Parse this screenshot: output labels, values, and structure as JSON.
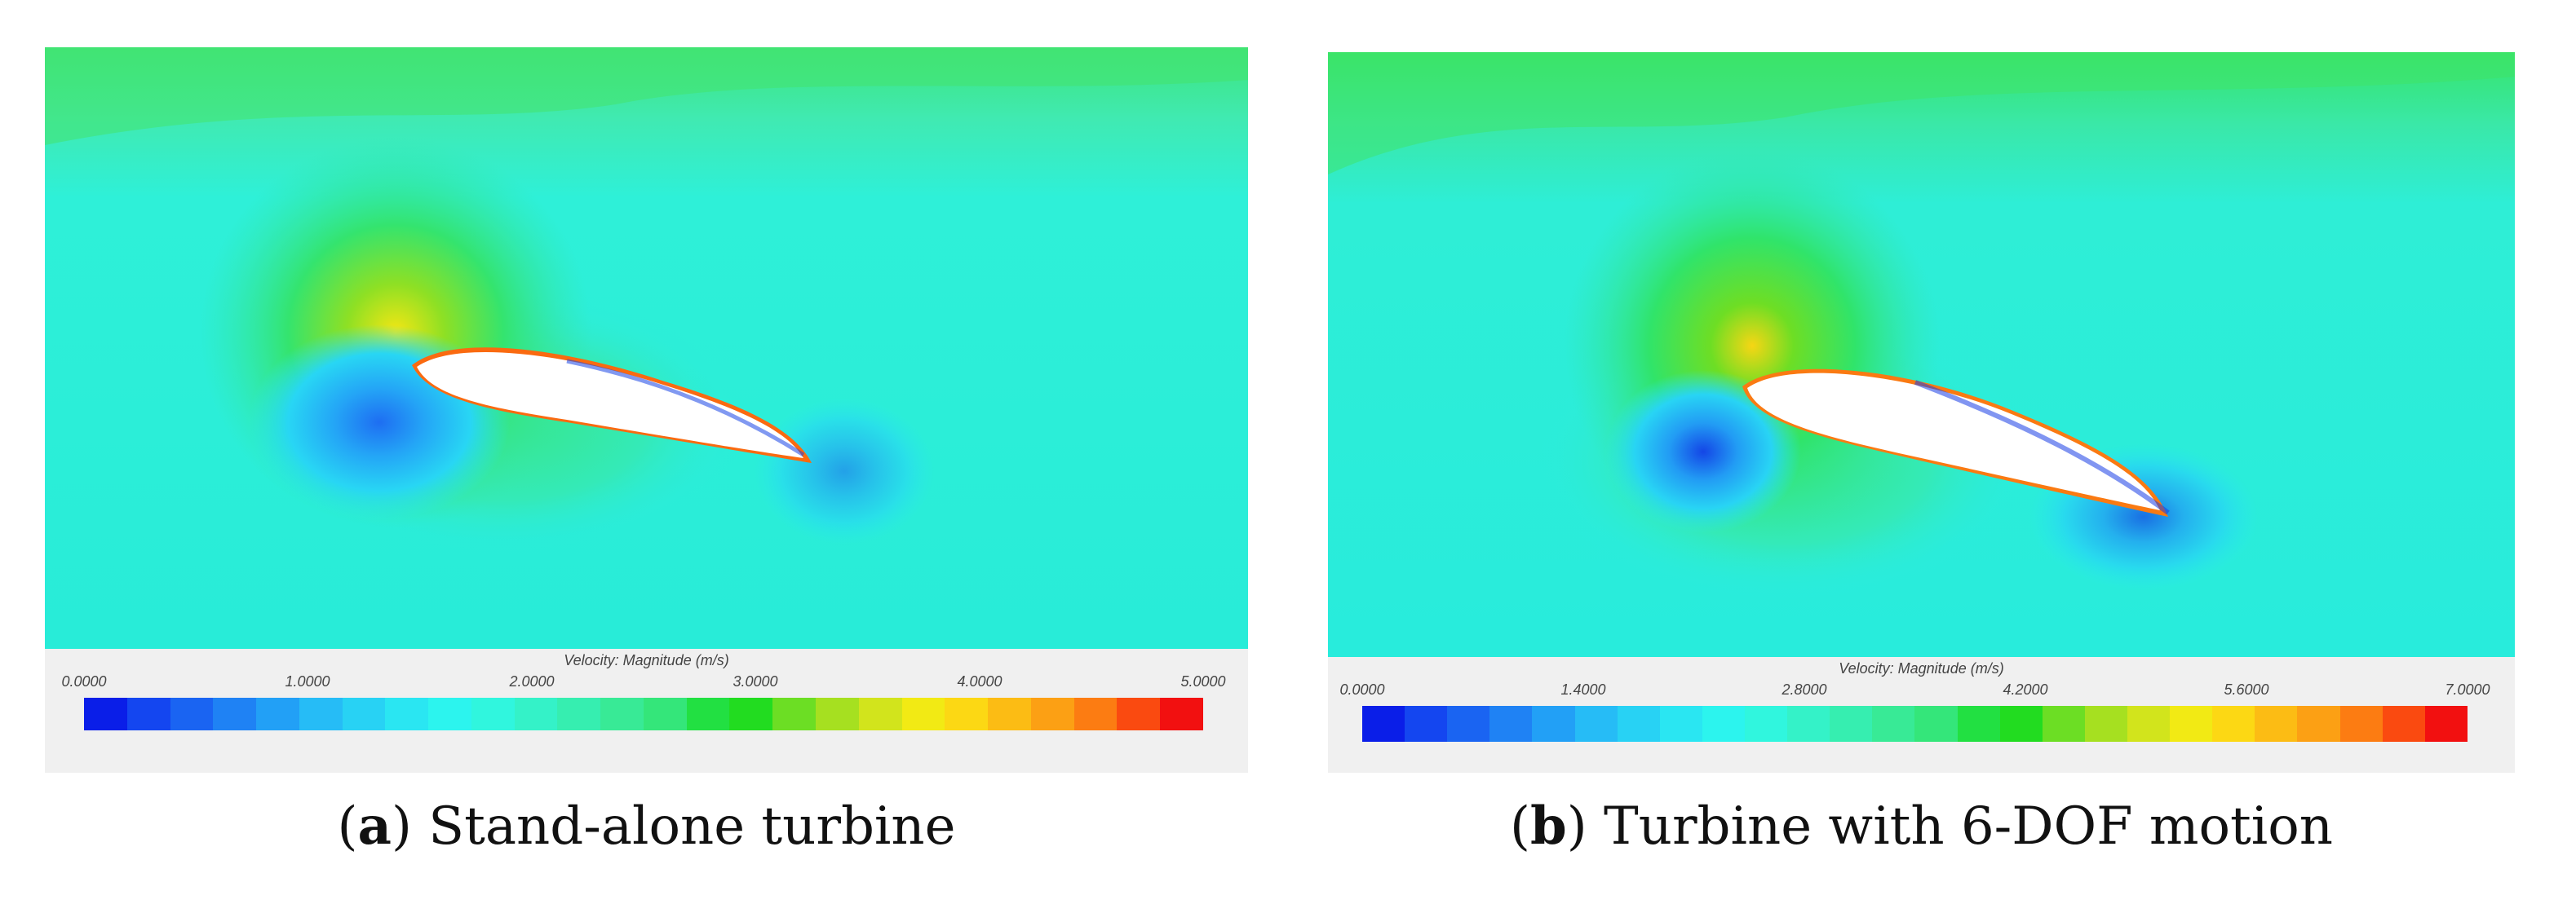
{
  "panels": [
    {
      "id": "a",
      "caption_letter": "a",
      "caption_text": "Stand-alone turbine",
      "legend_title": "Velocity: Magnitude (m/s)",
      "ticks": [
        "0.0000",
        "1.0000",
        "2.0000",
        "3.0000",
        "4.0000",
        "5.0000"
      ],
      "range": [
        0,
        5
      ]
    },
    {
      "id": "b",
      "caption_letter": "b",
      "caption_text": "Turbine with 6-DOF motion",
      "legend_title": "Velocity: Magnitude (m/s)",
      "ticks": [
        "0.0000",
        "1.4000",
        "2.8000",
        "4.2000",
        "5.6000",
        "7.0000"
      ],
      "range": [
        0,
        7
      ]
    }
  ],
  "colorbar": [
    "#0a1ee8",
    "#1446f0",
    "#1a64f2",
    "#1f82f4",
    "#22a0f6",
    "#26bcf6",
    "#28d2f4",
    "#2ae6f2",
    "#2cf4ee",
    "#30f6de",
    "#34f2c8",
    "#36eeb0",
    "#38ea96",
    "#34e67a",
    "#22e042",
    "#22dc20",
    "#6cde24",
    "#a6e020",
    "#d2e41c",
    "#f2ea14",
    "#fcd814",
    "#fcbc14",
    "#fca014",
    "#fc7c12",
    "#fa4a10",
    "#f21010"
  ],
  "colors": {
    "background_field": "#26e8d6",
    "upper_field": "#4be69a",
    "airfoil": "#ffffff"
  }
}
